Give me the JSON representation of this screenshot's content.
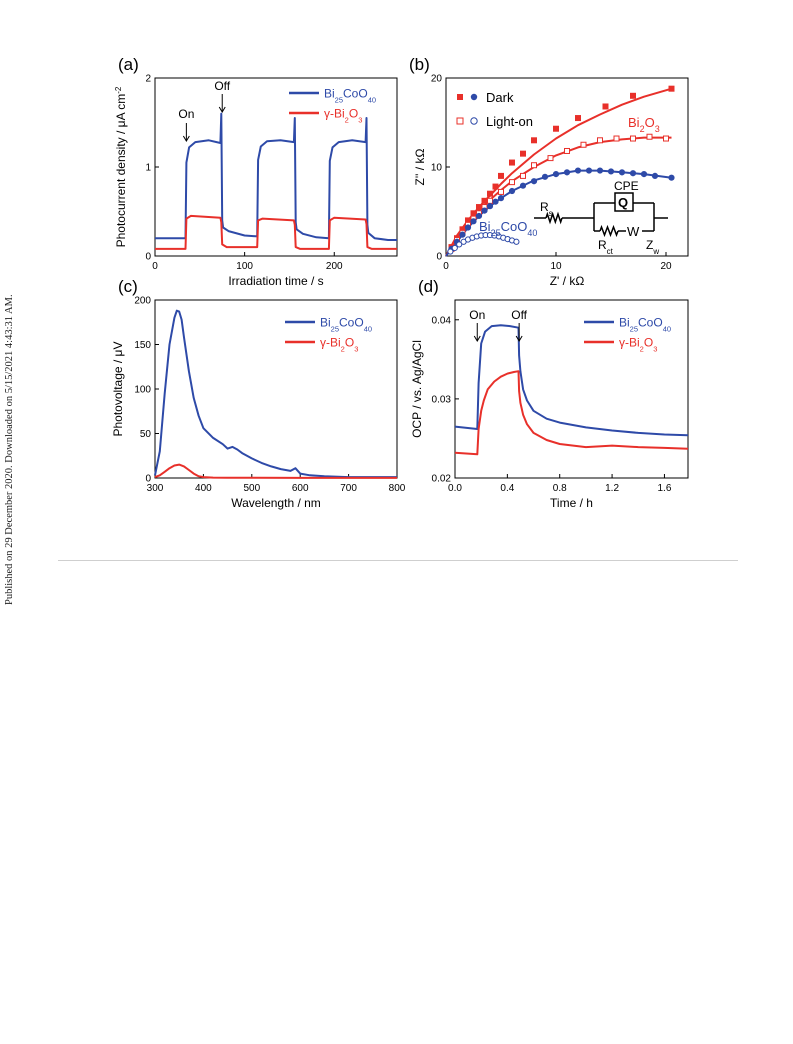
{
  "side_note": "Published on 29 December 2020. Downloaded on 5/15/2021 4:43:31 AM.",
  "chart_data": [
    {
      "panel": "(a)",
      "type": "line",
      "xlabel": "Irradiation time / s",
      "ylabel_parts": [
        "Photocurrent density / ",
        "μ",
        "A cm",
        "-2"
      ],
      "xlim": [
        0,
        270
      ],
      "ylim": [
        0,
        2
      ],
      "xticks": [
        0,
        100,
        200
      ],
      "yticks": [
        0,
        1,
        2
      ],
      "annotations": [
        {
          "text": "On",
          "x": 35
        },
        {
          "text": "Off",
          "x": 75
        }
      ],
      "legend": [
        {
          "main": "Bi",
          "sub1": "25",
          "mid": "CoO",
          "sub2": "40",
          "color": "#2e4aa8"
        },
        {
          "main": "γ-Bi",
          "sub1": "2",
          "mid": "O",
          "sub2": "3",
          "color": "#e8302a"
        }
      ],
      "series": [
        {
          "name": "Bi25CoO40",
          "color": "#2e4aa8",
          "x": [
            0,
            34,
            35,
            38,
            45,
            60,
            73,
            74,
            75,
            76,
            82,
            100,
            114,
            115,
            118,
            125,
            140,
            155,
            156,
            157,
            158,
            165,
            180,
            194,
            195,
            198,
            205,
            220,
            235,
            236,
            237,
            238,
            245,
            260,
            270
          ],
          "y": [
            0.2,
            0.2,
            1.05,
            1.22,
            1.28,
            1.3,
            1.27,
            1.6,
            0.4,
            0.32,
            0.28,
            0.23,
            0.22,
            1.08,
            1.23,
            1.29,
            1.3,
            1.28,
            1.55,
            0.38,
            0.3,
            0.25,
            0.21,
            0.2,
            1.07,
            1.22,
            1.28,
            1.3,
            1.28,
            1.55,
            0.35,
            0.26,
            0.2,
            0.18,
            0.18
          ]
        },
        {
          "name": "γ-Bi2O3",
          "color": "#e8302a",
          "x": [
            0,
            34,
            35,
            40,
            73,
            74,
            75,
            80,
            114,
            115,
            120,
            155,
            156,
            157,
            162,
            194,
            195,
            200,
            235,
            236,
            237,
            242,
            270
          ],
          "y": [
            0.08,
            0.08,
            0.42,
            0.45,
            0.43,
            0.38,
            0.13,
            0.1,
            0.1,
            0.4,
            0.42,
            0.4,
            0.35,
            0.1,
            0.08,
            0.08,
            0.4,
            0.43,
            0.41,
            0.36,
            0.1,
            0.08,
            0.08
          ]
        }
      ]
    },
    {
      "panel": "(b)",
      "type": "scatter",
      "xlabel": "Z' / kΩ",
      "ylabel": "Z'' / kΩ",
      "xlim": [
        0,
        22
      ],
      "ylim": [
        0,
        20
      ],
      "xticks": [
        0,
        10,
        20
      ],
      "yticks": [
        0,
        10,
        20
      ],
      "legend": [
        {
          "label": "Dark",
          "filled": true
        },
        {
          "label": "Light-on",
          "filled": false
        }
      ],
      "labels": {
        "bi2o3": [
          "Bi",
          "2",
          "O",
          "3"
        ],
        "bi25": [
          "Bi",
          "25",
          "CoO",
          "40"
        ]
      },
      "circuit": {
        "rs": [
          "R",
          "s"
        ],
        "cpe": "CPE",
        "q": "Q",
        "rct": [
          "R",
          "ct"
        ],
        "w": "W",
        "zw": [
          "Z",
          "w"
        ]
      },
      "series": [
        {
          "name": "Bi2O3 Dark",
          "color": "#e8302a",
          "marker": "square-filled",
          "x": [
            0.5,
            1.0,
            1.5,
            2.0,
            2.5,
            3.0,
            3.5,
            4.0,
            4.5,
            5.0,
            6.0,
            7.0,
            8.0,
            10.0,
            12.0,
            14.5,
            17.0,
            20.5
          ],
          "y": [
            1.0,
            2.0,
            3.0,
            4.0,
            4.8,
            5.5,
            6.2,
            7.0,
            7.8,
            9.0,
            10.5,
            11.5,
            13.0,
            14.3,
            15.5,
            16.8,
            18.0,
            18.8
          ]
        },
        {
          "name": "Bi2O3 Light-on",
          "color": "#e8302a",
          "marker": "square-open",
          "x": [
            0.5,
            1.0,
            1.5,
            2.0,
            2.5,
            3.0,
            3.5,
            4.0,
            5.0,
            6.0,
            7.0,
            8.0,
            9.5,
            11.0,
            12.5,
            14.0,
            15.5,
            17.0,
            18.5,
            20.0
          ],
          "y": [
            0.8,
            1.8,
            2.6,
            3.5,
            4.2,
            4.8,
            5.5,
            6.2,
            7.2,
            8.3,
            9.0,
            10.2,
            11.0,
            11.8,
            12.5,
            13.0,
            13.2,
            13.2,
            13.4,
            13.2
          ]
        },
        {
          "name": "Bi25CoO40 Dark",
          "color": "#2e4aa8",
          "marker": "circle-filled",
          "x": [
            0.5,
            1.0,
            1.5,
            2.0,
            2.5,
            3.0,
            3.5,
            4.0,
            4.5,
            5.0,
            6.0,
            7.0,
            8.0,
            9.0,
            10.0,
            11.0,
            12.0,
            13.0,
            14.0,
            15.0,
            16.0,
            17.0,
            18.0,
            19.0,
            20.5
          ],
          "y": [
            0.8,
            1.6,
            2.4,
            3.2,
            3.9,
            4.5,
            5.1,
            5.6,
            6.1,
            6.5,
            7.3,
            7.9,
            8.4,
            8.9,
            9.2,
            9.4,
            9.6,
            9.6,
            9.6,
            9.5,
            9.4,
            9.3,
            9.2,
            9.0,
            8.8
          ]
        },
        {
          "name": "Bi25CoO40 Light-on",
          "color": "#2e4aa8",
          "marker": "circle-open",
          "x": [
            0.4,
            0.8,
            1.2,
            1.6,
            2.0,
            2.4,
            2.8,
            3.2,
            3.6,
            4.0,
            4.4,
            4.8,
            5.2,
            5.6,
            6.0,
            6.4
          ],
          "y": [
            0.5,
            0.9,
            1.3,
            1.6,
            1.85,
            2.05,
            2.2,
            2.3,
            2.35,
            2.35,
            2.3,
            2.2,
            2.05,
            1.9,
            1.75,
            1.6
          ]
        }
      ],
      "fits": [
        {
          "color": "#e8302a",
          "x": [
            0,
            1,
            2,
            3,
            4,
            5,
            6,
            8,
            10,
            12,
            14,
            16,
            18,
            20.5
          ],
          "y": [
            0,
            2.3,
            4.0,
            5.5,
            6.8,
            8.1,
            9.3,
            11.4,
            13.2,
            14.7,
            15.9,
            17.0,
            17.9,
            18.8
          ]
        },
        {
          "color": "#e8302a",
          "x": [
            0,
            1,
            2,
            3,
            4,
            5,
            6,
            8,
            10,
            12,
            14,
            16,
            18,
            20.5
          ],
          "y": [
            0,
            2.0,
            3.7,
            5.1,
            6.3,
            7.4,
            8.4,
            10.0,
            11.3,
            12.2,
            12.8,
            13.1,
            13.3,
            13.3
          ]
        },
        {
          "color": "#2e4aa8",
          "x": [
            0,
            1,
            2,
            3,
            4,
            5,
            6,
            8,
            10,
            12,
            14,
            16,
            18,
            20.5
          ],
          "y": [
            0,
            1.6,
            3.2,
            4.5,
            5.6,
            6.5,
            7.3,
            8.5,
            9.2,
            9.6,
            9.6,
            9.4,
            9.2,
            8.8
          ]
        }
      ]
    },
    {
      "panel": "(c)",
      "type": "line",
      "xlabel": "Wavelength / nm",
      "ylabel_parts": [
        "Photovoltage / ",
        "μ",
        "V"
      ],
      "xlim": [
        300,
        800
      ],
      "ylim": [
        0,
        200
      ],
      "xticks": [
        300,
        400,
        500,
        600,
        700,
        800
      ],
      "yticks": [
        0,
        50,
        100,
        150,
        200
      ],
      "legend": [
        {
          "main": "Bi",
          "sub1": "25",
          "mid": "CoO",
          "sub2": "40",
          "color": "#2e4aa8"
        },
        {
          "main": "γ-Bi",
          "sub1": "2",
          "mid": "O",
          "sub2": "3",
          "color": "#e8302a"
        }
      ],
      "series": [
        {
          "name": "Bi25CoO40",
          "color": "#2e4aa8",
          "x": [
            300,
            310,
            320,
            330,
            340,
            345,
            350,
            355,
            360,
            370,
            380,
            390,
            400,
            420,
            440,
            450,
            460,
            470,
            480,
            500,
            520,
            540,
            560,
            580,
            590,
            600,
            620,
            650,
            700,
            750,
            800
          ],
          "y": [
            3,
            30,
            95,
            150,
            180,
            188,
            187,
            178,
            158,
            120,
            90,
            70,
            56,
            45,
            38,
            33,
            35,
            32,
            28,
            22,
            17,
            13,
            10,
            8,
            11,
            5,
            3,
            2,
            1,
            1,
            1
          ]
        },
        {
          "name": "γ-Bi2O3",
          "color": "#e8302a",
          "x": [
            300,
            310,
            320,
            330,
            340,
            350,
            360,
            370,
            380,
            390,
            400,
            420,
            450,
            500,
            600,
            700,
            800
          ],
          "y": [
            1,
            3,
            7,
            11,
            14,
            15,
            13,
            9,
            5,
            2,
            1,
            0.5,
            0.3,
            0.2,
            0.1,
            0.1,
            0.1
          ]
        }
      ]
    },
    {
      "panel": "(d)",
      "type": "line",
      "xlabel": "Time / h",
      "ylabel": "OCP  / vs. Ag/AgCl",
      "xlim": [
        0,
        1.78
      ],
      "ylim": [
        0.02,
        0.0425
      ],
      "xticks": [
        0.0,
        0.4,
        0.8,
        1.2,
        1.6
      ],
      "xticklabels": [
        "0.0",
        "0.4",
        "0.8",
        "1.2",
        "1.6"
      ],
      "yticks": [
        0.02,
        0.03,
        0.04
      ],
      "yticklabels": [
        "0.02",
        "0.03",
        "0.04"
      ],
      "annotations": [
        {
          "text": "On",
          "x": 0.17
        },
        {
          "text": "Off",
          "x": 0.49
        }
      ],
      "legend": [
        {
          "main": "Bi",
          "sub1": "25",
          "mid": "CoO",
          "sub2": "40",
          "color": "#2e4aa8"
        },
        {
          "main": "γ-Bi",
          "sub1": "2",
          "mid": "O",
          "sub2": "3",
          "color": "#e8302a"
        }
      ],
      "series": [
        {
          "name": "Bi25CoO40",
          "color": "#2e4aa8",
          "x": [
            0,
            0.17,
            0.18,
            0.2,
            0.23,
            0.28,
            0.35,
            0.42,
            0.485,
            0.49,
            0.5,
            0.52,
            0.55,
            0.6,
            0.7,
            0.8,
            1.0,
            1.2,
            1.4,
            1.6,
            1.78
          ],
          "y": [
            0.0265,
            0.0262,
            0.032,
            0.037,
            0.0385,
            0.0392,
            0.0393,
            0.0392,
            0.039,
            0.0355,
            0.0335,
            0.0312,
            0.0298,
            0.0285,
            0.0275,
            0.027,
            0.0264,
            0.026,
            0.0257,
            0.0255,
            0.0254
          ]
        },
        {
          "name": "γ-Bi2O3",
          "color": "#e8302a",
          "x": [
            0,
            0.17,
            0.18,
            0.2,
            0.22,
            0.25,
            0.3,
            0.35,
            0.4,
            0.45,
            0.485,
            0.49,
            0.5,
            0.52,
            0.55,
            0.6,
            0.7,
            0.8,
            1.0,
            1.2,
            1.4,
            1.6,
            1.78
          ],
          "y": [
            0.0232,
            0.023,
            0.0262,
            0.0285,
            0.0298,
            0.0312,
            0.0322,
            0.0328,
            0.0332,
            0.0334,
            0.0335,
            0.031,
            0.0295,
            0.028,
            0.0268,
            0.0257,
            0.0248,
            0.0243,
            0.0239,
            0.0241,
            0.0239,
            0.0238,
            0.0237
          ]
        }
      ]
    }
  ]
}
